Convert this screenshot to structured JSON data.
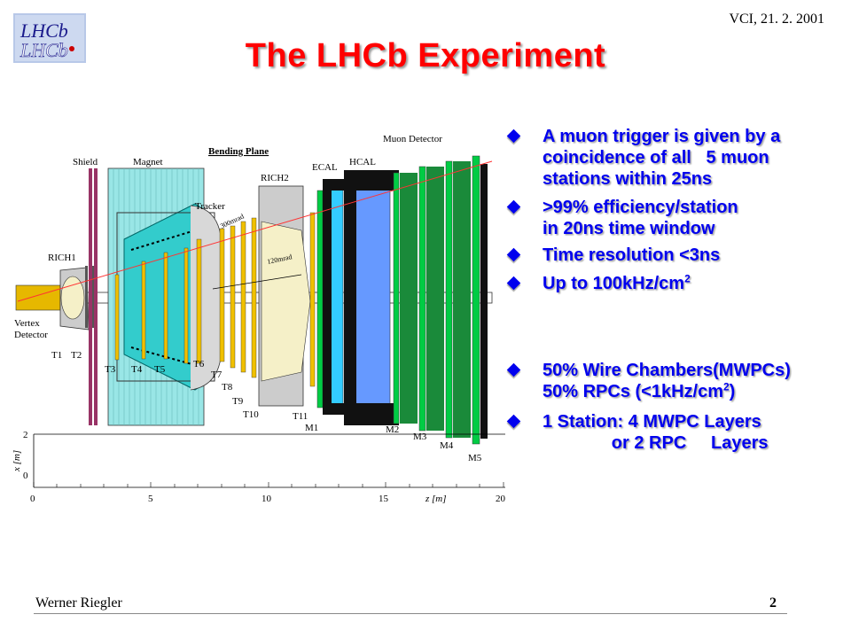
{
  "header": {
    "logo_text": "LHCb",
    "date": "VCI, 21. 2. 2001",
    "title": "The LHCb Experiment"
  },
  "diagram": {
    "labels": {
      "shield": "Shield",
      "magnet": "Magnet",
      "bending_plane": "Bending Plane",
      "muon_detector": "Muon Detector",
      "ecal": "ECAL",
      "hcal": "HCAL",
      "rich2": "RICH2",
      "tracker": "Tracker",
      "rich1": "RICH1",
      "vertex": "Vertex",
      "detector": "Detector",
      "mrad300": "300mrad",
      "mrad120": "120mrad",
      "t1": "T1",
      "t2": "T2",
      "t3": "T3",
      "t4": "T4",
      "t5": "T5",
      "t6": "T6",
      "t7": "T7",
      "t8": "T8",
      "t9": "T9",
      "t10": "T10",
      "t11": "T11",
      "m1": "M1",
      "m2": "M2",
      "m3": "M3",
      "m4": "M4",
      "m5": "M5"
    },
    "axes": {
      "x_label": "z [m]",
      "y_label": "x [m]",
      "x_ticks": [
        "0",
        "5",
        "10",
        "15",
        "20"
      ],
      "y_ticks": [
        "2",
        "0"
      ]
    }
  },
  "bullets": [
    {
      "text": "A muon trigger is given by a\ncoincidence of all   5 muon\nstations within 25ns"
    },
    {
      "text": ">99% efficiency/station\nin 20ns time window"
    },
    {
      "text": "Time resolution <3ns"
    },
    {
      "pre": "Up to 100kHz/cm",
      "sup": "2"
    },
    {
      "text": "50% Wire Chambers(MWPCs)"
    },
    {
      "text": "1 Station: 4 MWPC Layers\n              or 2 RPC     Layers"
    }
  ],
  "bullet5_line2": {
    "pre": "50% RPCs (<1kHz/cm",
    "sup": "2",
    "post": ")"
  },
  "footer": {
    "author": "Werner Riegler",
    "page": "2"
  },
  "colors": {
    "title": "#ff0000",
    "bullet_text": "#0000ee",
    "muon_green": "#00cc44",
    "ecal_cyan": "#33ccff",
    "hcal_blue": "#6699ff",
    "magnet_cyan": "#99e6e6",
    "station_yellow": "#f0c000"
  }
}
